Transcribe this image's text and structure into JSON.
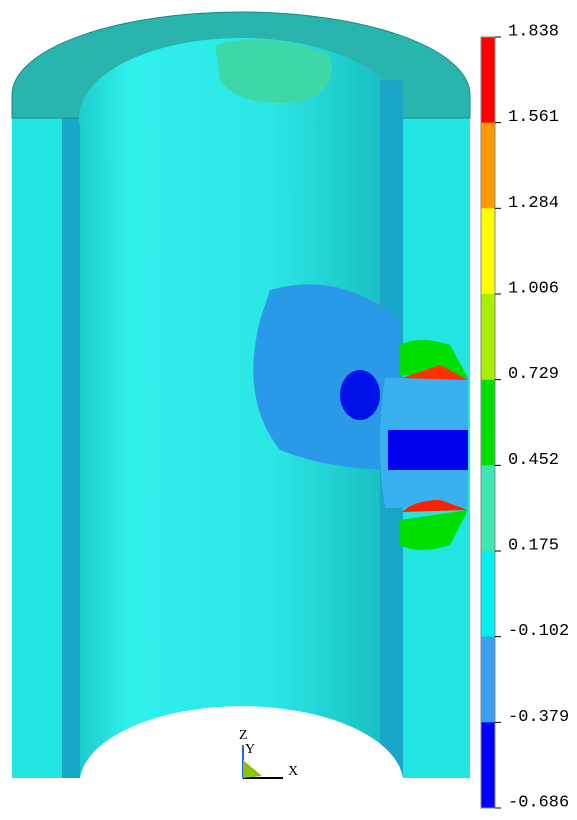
{
  "legend": {
    "labels": [
      "1.838",
      "1.561",
      "1.284",
      "1.006",
      "0.729",
      "0.452",
      "0.175",
      "-0.102",
      "-0.379",
      "-0.686"
    ],
    "colors": [
      "#ff0000",
      "#ff9a00",
      "#ffff00",
      "#a8ee00",
      "#00e000",
      "#3fe6b4",
      "#00f0f0",
      "#3aa0f0",
      "#0000ff"
    ]
  },
  "triad": {
    "z": "Z",
    "y": "Y",
    "x": "X"
  }
}
